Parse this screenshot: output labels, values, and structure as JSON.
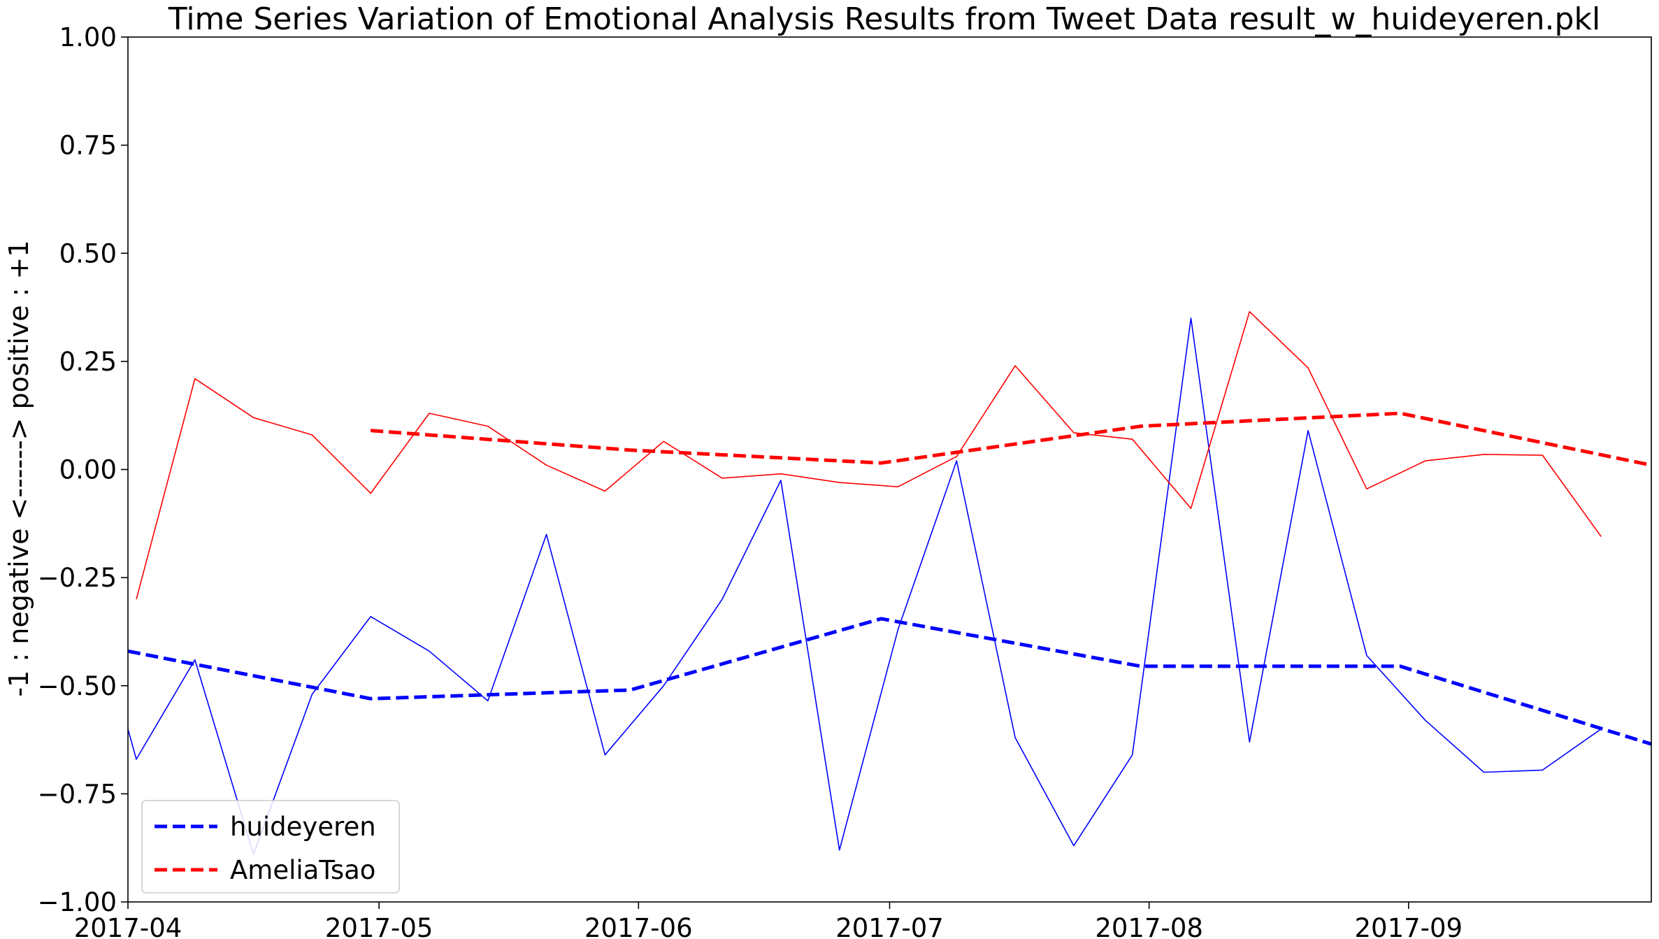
{
  "chart_data": {
    "type": "line",
    "title": "Time Series Variation of Emotional Analysis Results from Tweet Data result_w_huideyeren.pkl",
    "xlabel": "",
    "ylabel": "-1 : negative <------> positive : +1",
    "xlim": [
      "2017-04-01",
      "2017-09-30"
    ],
    "ylim": [
      -1.0,
      1.0
    ],
    "yticks": [
      -1.0,
      -0.75,
      -0.5,
      -0.25,
      0.0,
      0.25,
      0.5,
      0.75,
      1.0
    ],
    "ytick_labels": [
      "−1.00",
      "−0.75",
      "−0.50",
      "−0.25",
      "0.00",
      "0.25",
      "0.50",
      "0.75",
      "1.00"
    ],
    "xticks": [
      "2017-04-01",
      "2017-05-01",
      "2017-06-01",
      "2017-07-01",
      "2017-08-01",
      "2017-09-01"
    ],
    "xtick_labels": [
      "2017-04",
      "2017-05",
      "2017-06",
      "2017-07",
      "2017-08",
      "2017-09"
    ],
    "grid": false,
    "legend_position": "lower-left",
    "legend": [
      "huideyeren",
      "AmeliaTsao"
    ],
    "series": [
      {
        "name": "huideyeren",
        "color": "#0000ff",
        "style": "solid",
        "x": [
          "2017-04-01",
          "2017-04-02",
          "2017-04-09",
          "2017-04-16",
          "2017-04-23",
          "2017-04-30",
          "2017-05-07",
          "2017-05-14",
          "2017-05-21",
          "2017-05-28",
          "2017-06-04",
          "2017-06-11",
          "2017-06-18",
          "2017-06-25",
          "2017-07-02",
          "2017-07-09",
          "2017-07-16",
          "2017-07-23",
          "2017-07-30",
          "2017-08-06",
          "2017-08-13",
          "2017-08-20",
          "2017-08-27",
          "2017-09-03",
          "2017-09-10",
          "2017-09-17",
          "2017-09-24"
        ],
        "y": [
          -0.6,
          -0.67,
          -0.44,
          -0.89,
          -0.52,
          -0.34,
          -0.42,
          -0.535,
          -0.15,
          -0.66,
          -0.5,
          -0.3,
          -0.025,
          -0.88,
          -0.37,
          0.02,
          -0.62,
          -0.87,
          -0.66,
          0.35,
          -0.63,
          0.09,
          -0.43,
          -0.58,
          -0.7,
          -0.695,
          -0.6
        ]
      },
      {
        "name": "huideyeren",
        "color": "#0000ff",
        "style": "dashed",
        "x": [
          "2017-04-01",
          "2017-04-30",
          "2017-05-31",
          "2017-06-30",
          "2017-07-31",
          "2017-08-31",
          "2017-09-30"
        ],
        "y": [
          -0.42,
          -0.53,
          -0.51,
          -0.345,
          -0.455,
          -0.455,
          -0.635
        ]
      },
      {
        "name": "AmeliaTsao",
        "color": "#ff0000",
        "style": "solid",
        "x": [
          "2017-04-02",
          "2017-04-09",
          "2017-04-16",
          "2017-04-23",
          "2017-04-30",
          "2017-05-07",
          "2017-05-14",
          "2017-05-21",
          "2017-05-28",
          "2017-06-04",
          "2017-06-11",
          "2017-06-18",
          "2017-06-25",
          "2017-07-02",
          "2017-07-09",
          "2017-07-16",
          "2017-07-23",
          "2017-07-30",
          "2017-08-06",
          "2017-08-13",
          "2017-08-20",
          "2017-08-27",
          "2017-09-03",
          "2017-09-10",
          "2017-09-17",
          "2017-09-24"
        ],
        "y": [
          -0.3,
          0.21,
          0.12,
          0.08,
          -0.055,
          0.13,
          0.1,
          0.01,
          -0.05,
          0.065,
          -0.02,
          -0.01,
          -0.03,
          -0.04,
          0.03,
          0.24,
          0.085,
          0.07,
          -0.09,
          0.365,
          0.235,
          -0.045,
          0.02,
          0.035,
          0.033,
          -0.155
        ]
      },
      {
        "name": "AmeliaTsao",
        "color": "#ff0000",
        "style": "dashed",
        "x": [
          "2017-04-30",
          "2017-05-31",
          "2017-06-30",
          "2017-07-31",
          "2017-08-31",
          "2017-09-30"
        ],
        "y": [
          0.09,
          0.045,
          0.015,
          0.1,
          0.13,
          0.01
        ]
      }
    ]
  }
}
